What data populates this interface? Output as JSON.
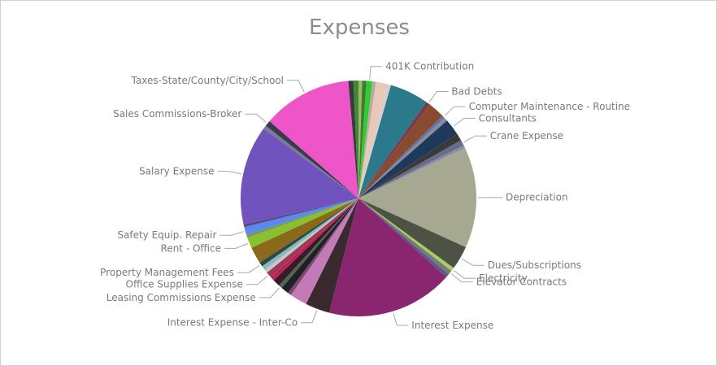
{
  "chart_data": {
    "type": "pie",
    "title": "Expenses",
    "legend": "none",
    "slices": [
      {
        "label": "",
        "value": 0.5,
        "color": "#a8b55a"
      },
      {
        "label": "",
        "value": 0.6,
        "color": "#3a7d3a"
      },
      {
        "label": "401K Contribution",
        "value": 0.8,
        "color": "#2ecc2e"
      },
      {
        "label": "",
        "value": 0.5,
        "color": "#b9a9a0"
      },
      {
        "label": "",
        "value": 1.7,
        "color": "#e8c8b8"
      },
      {
        "label": "",
        "value": 0.4,
        "color": "#d0d0d0"
      },
      {
        "label": "",
        "value": 5.4,
        "color": "#2b7a8c"
      },
      {
        "label": "Bad Debts",
        "value": 0.6,
        "color": "#7a3a48"
      },
      {
        "label": "",
        "value": 2.3,
        "color": "#8a4a30"
      },
      {
        "label": "Computer Maintenance - Routine",
        "value": 0.4,
        "color": "#5a7aa0"
      },
      {
        "label": "",
        "value": 0.5,
        "color": "#8a8aa0"
      },
      {
        "label": "Consultants",
        "value": 2.3,
        "color": "#1e3a5a"
      },
      {
        "label": "",
        "value": 1.0,
        "color": "#3a3a3a"
      },
      {
        "label": "Crane Expense",
        "value": 0.8,
        "color": "#6a6a8a"
      },
      {
        "label": "",
        "value": 0.4,
        "color": "#8a8aa8"
      },
      {
        "label": "Depreciation",
        "value": 14.0,
        "color": "#a7a891"
      },
      {
        "label": "Dues/Subscriptions",
        "value": 3.3,
        "color": "#4e5244"
      },
      {
        "label": "Electricity",
        "value": 0.5,
        "color": "#a8d05a"
      },
      {
        "label": "Elevator Contracts",
        "value": 0.6,
        "color": "#7a7a7a"
      },
      {
        "label": "",
        "value": 0.5,
        "color": "#5a5a8a"
      },
      {
        "label": "Interest Expense",
        "value": 17.6,
        "color": "#8a2670"
      },
      {
        "label": "Interest Expense - Inter-Co",
        "value": 3.4,
        "color": "#3a2a30"
      },
      {
        "label": "",
        "value": 2.4,
        "color": "#c47ab8"
      },
      {
        "label": "",
        "value": 0.5,
        "color": "#7a4a6a"
      },
      {
        "label": "",
        "value": 1.1,
        "color": "#20202a"
      },
      {
        "label": "Leasing Commissions Expense",
        "value": 0.5,
        "color": "#4a6a4a"
      },
      {
        "label": "",
        "value": 1.0,
        "color": "#3a1a2a"
      },
      {
        "label": "",
        "value": 0.6,
        "color": "#c02050"
      },
      {
        "label": "Office Supplies Expense",
        "value": 0.8,
        "color": "#9a3a5a"
      },
      {
        "label": "",
        "value": 0.5,
        "color": "#c8c8c8"
      },
      {
        "label": "",
        "value": 0.6,
        "color": "#88b8b8"
      },
      {
        "label": "Property Management Fees",
        "value": 0.6,
        "color": "#2a4a4a"
      },
      {
        "label": "",
        "value": 2.3,
        "color": "#8a6a1a"
      },
      {
        "label": "Rent - Office",
        "value": 1.5,
        "color": "#88c030"
      },
      {
        "label": "",
        "value": 0.4,
        "color": "#7a9a50"
      },
      {
        "label": "Safety Equip. Repair",
        "value": 1.1,
        "color": "#5a8af0"
      },
      {
        "label": "",
        "value": 0.4,
        "color": "#5a4a8a"
      },
      {
        "label": "Salary Expense",
        "value": 13.8,
        "color": "#7053bd"
      },
      {
        "label": "",
        "value": 0.5,
        "color": "#7a7a9a"
      },
      {
        "label": "Sales Commissions-Broker",
        "value": 0.8,
        "color": "#3a3a4a"
      },
      {
        "label": "Taxes-State/County/City/School",
        "value": 12.4,
        "color": "#ee55c8"
      },
      {
        "label": "",
        "value": 0.7,
        "color": "#3a3a3a"
      },
      {
        "label": "",
        "value": 0.7,
        "color": "#3a8a3a"
      }
    ]
  }
}
